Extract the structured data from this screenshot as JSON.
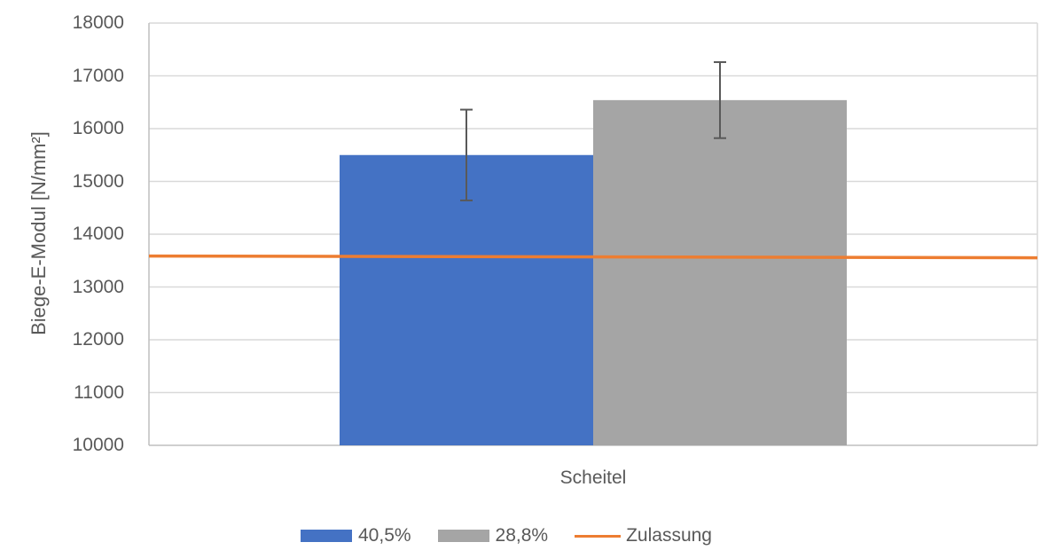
{
  "chart_data": {
    "type": "bar",
    "title": "",
    "xlabel": "",
    "ylabel": "Biege-E-Modul [N/mm²]",
    "categories": [
      "Scheitel"
    ],
    "ylim": [
      10000,
      18000
    ],
    "yticks": [
      10000,
      11000,
      12000,
      13000,
      14000,
      15000,
      16000,
      17000,
      18000
    ],
    "grid": true,
    "legend_position": "bottom",
    "series": [
      {
        "name": "40,5%",
        "type": "bar",
        "color": "#4472C4",
        "values": [
          15500
        ],
        "error": [
          860
        ]
      },
      {
        "name": "28,8%",
        "type": "bar",
        "color": "#A5A5A5",
        "values": [
          16540
        ],
        "error": [
          720
        ]
      },
      {
        "name": "Zulassung",
        "type": "line",
        "color": "#ED7D31",
        "values": [
          13570
        ]
      }
    ]
  },
  "axis": {
    "ylabel": "Biege-E-Modul [N/mm²]",
    "category_label": "Scheitel",
    "yticks": [
      "18000",
      "17000",
      "16000",
      "15000",
      "14000",
      "13000",
      "12000",
      "11000",
      "10000"
    ]
  },
  "legend": {
    "items": [
      {
        "label": "40,5%",
        "color": "#4472C4",
        "kind": "bar"
      },
      {
        "label": "28,8%",
        "color": "#A5A5A5",
        "kind": "bar"
      },
      {
        "label": "Zulassung",
        "color": "#ED7D31",
        "kind": "line"
      }
    ]
  },
  "colors": {
    "grid": "#D9D9D9",
    "axis": "#BFBFBF",
    "error_bar": "#595959"
  }
}
